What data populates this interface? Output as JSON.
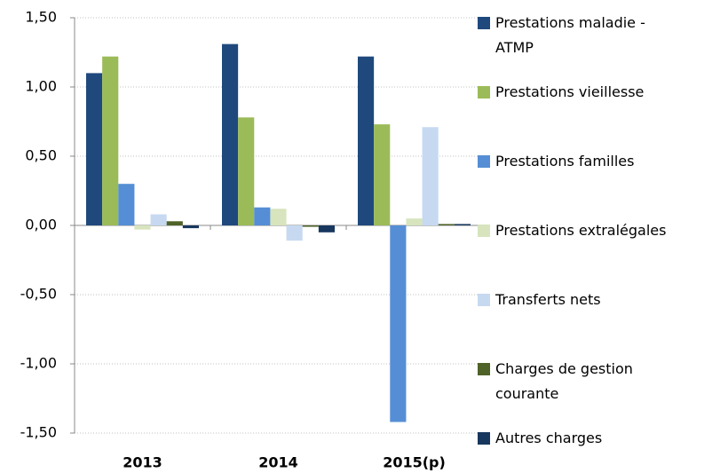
{
  "chart_data": {
    "type": "bar",
    "categories": [
      "2013",
      "2014",
      "2015(p)"
    ],
    "series": [
      {
        "name": "Prestations maladie - ATMP",
        "color": "#1f497d",
        "values": [
          1.1,
          1.31,
          1.22
        ]
      },
      {
        "name": "Prestations vieillesse",
        "color": "#9bbb59",
        "values": [
          1.22,
          0.78,
          0.73
        ]
      },
      {
        "name": "Prestations familles",
        "color": "#558ed5",
        "values": [
          0.3,
          0.13,
          -1.42
        ]
      },
      {
        "name": "Prestations extralégales",
        "color": "#d7e4bd",
        "values": [
          -0.03,
          0.12,
          0.05
        ]
      },
      {
        "name": "Transferts nets",
        "color": "#c6d9f1",
        "values": [
          0.08,
          -0.11,
          0.71
        ]
      },
      {
        "name": "Charges de gestion courante",
        "color": "#4f6228",
        "values": [
          0.03,
          -0.01,
          0.01
        ]
      },
      {
        "name": "Autres charges",
        "color": "#17375e",
        "values": [
          -0.02,
          -0.05,
          0.01
        ]
      }
    ],
    "ylim": [
      -1.5,
      1.5
    ],
    "yticks": [
      {
        "value": -1.5,
        "label": "-1,50"
      },
      {
        "value": -1,
        "label": "-1,00"
      },
      {
        "value": -0.5,
        "label": "-0,50"
      },
      {
        "value": 0,
        "label": "0,00"
      },
      {
        "value": 0.5,
        "label": "0,50"
      },
      {
        "value": 1,
        "label": "1,00"
      },
      {
        "value": 1.5,
        "label": "1,50"
      }
    ],
    "grid": true,
    "legend": "right"
  }
}
